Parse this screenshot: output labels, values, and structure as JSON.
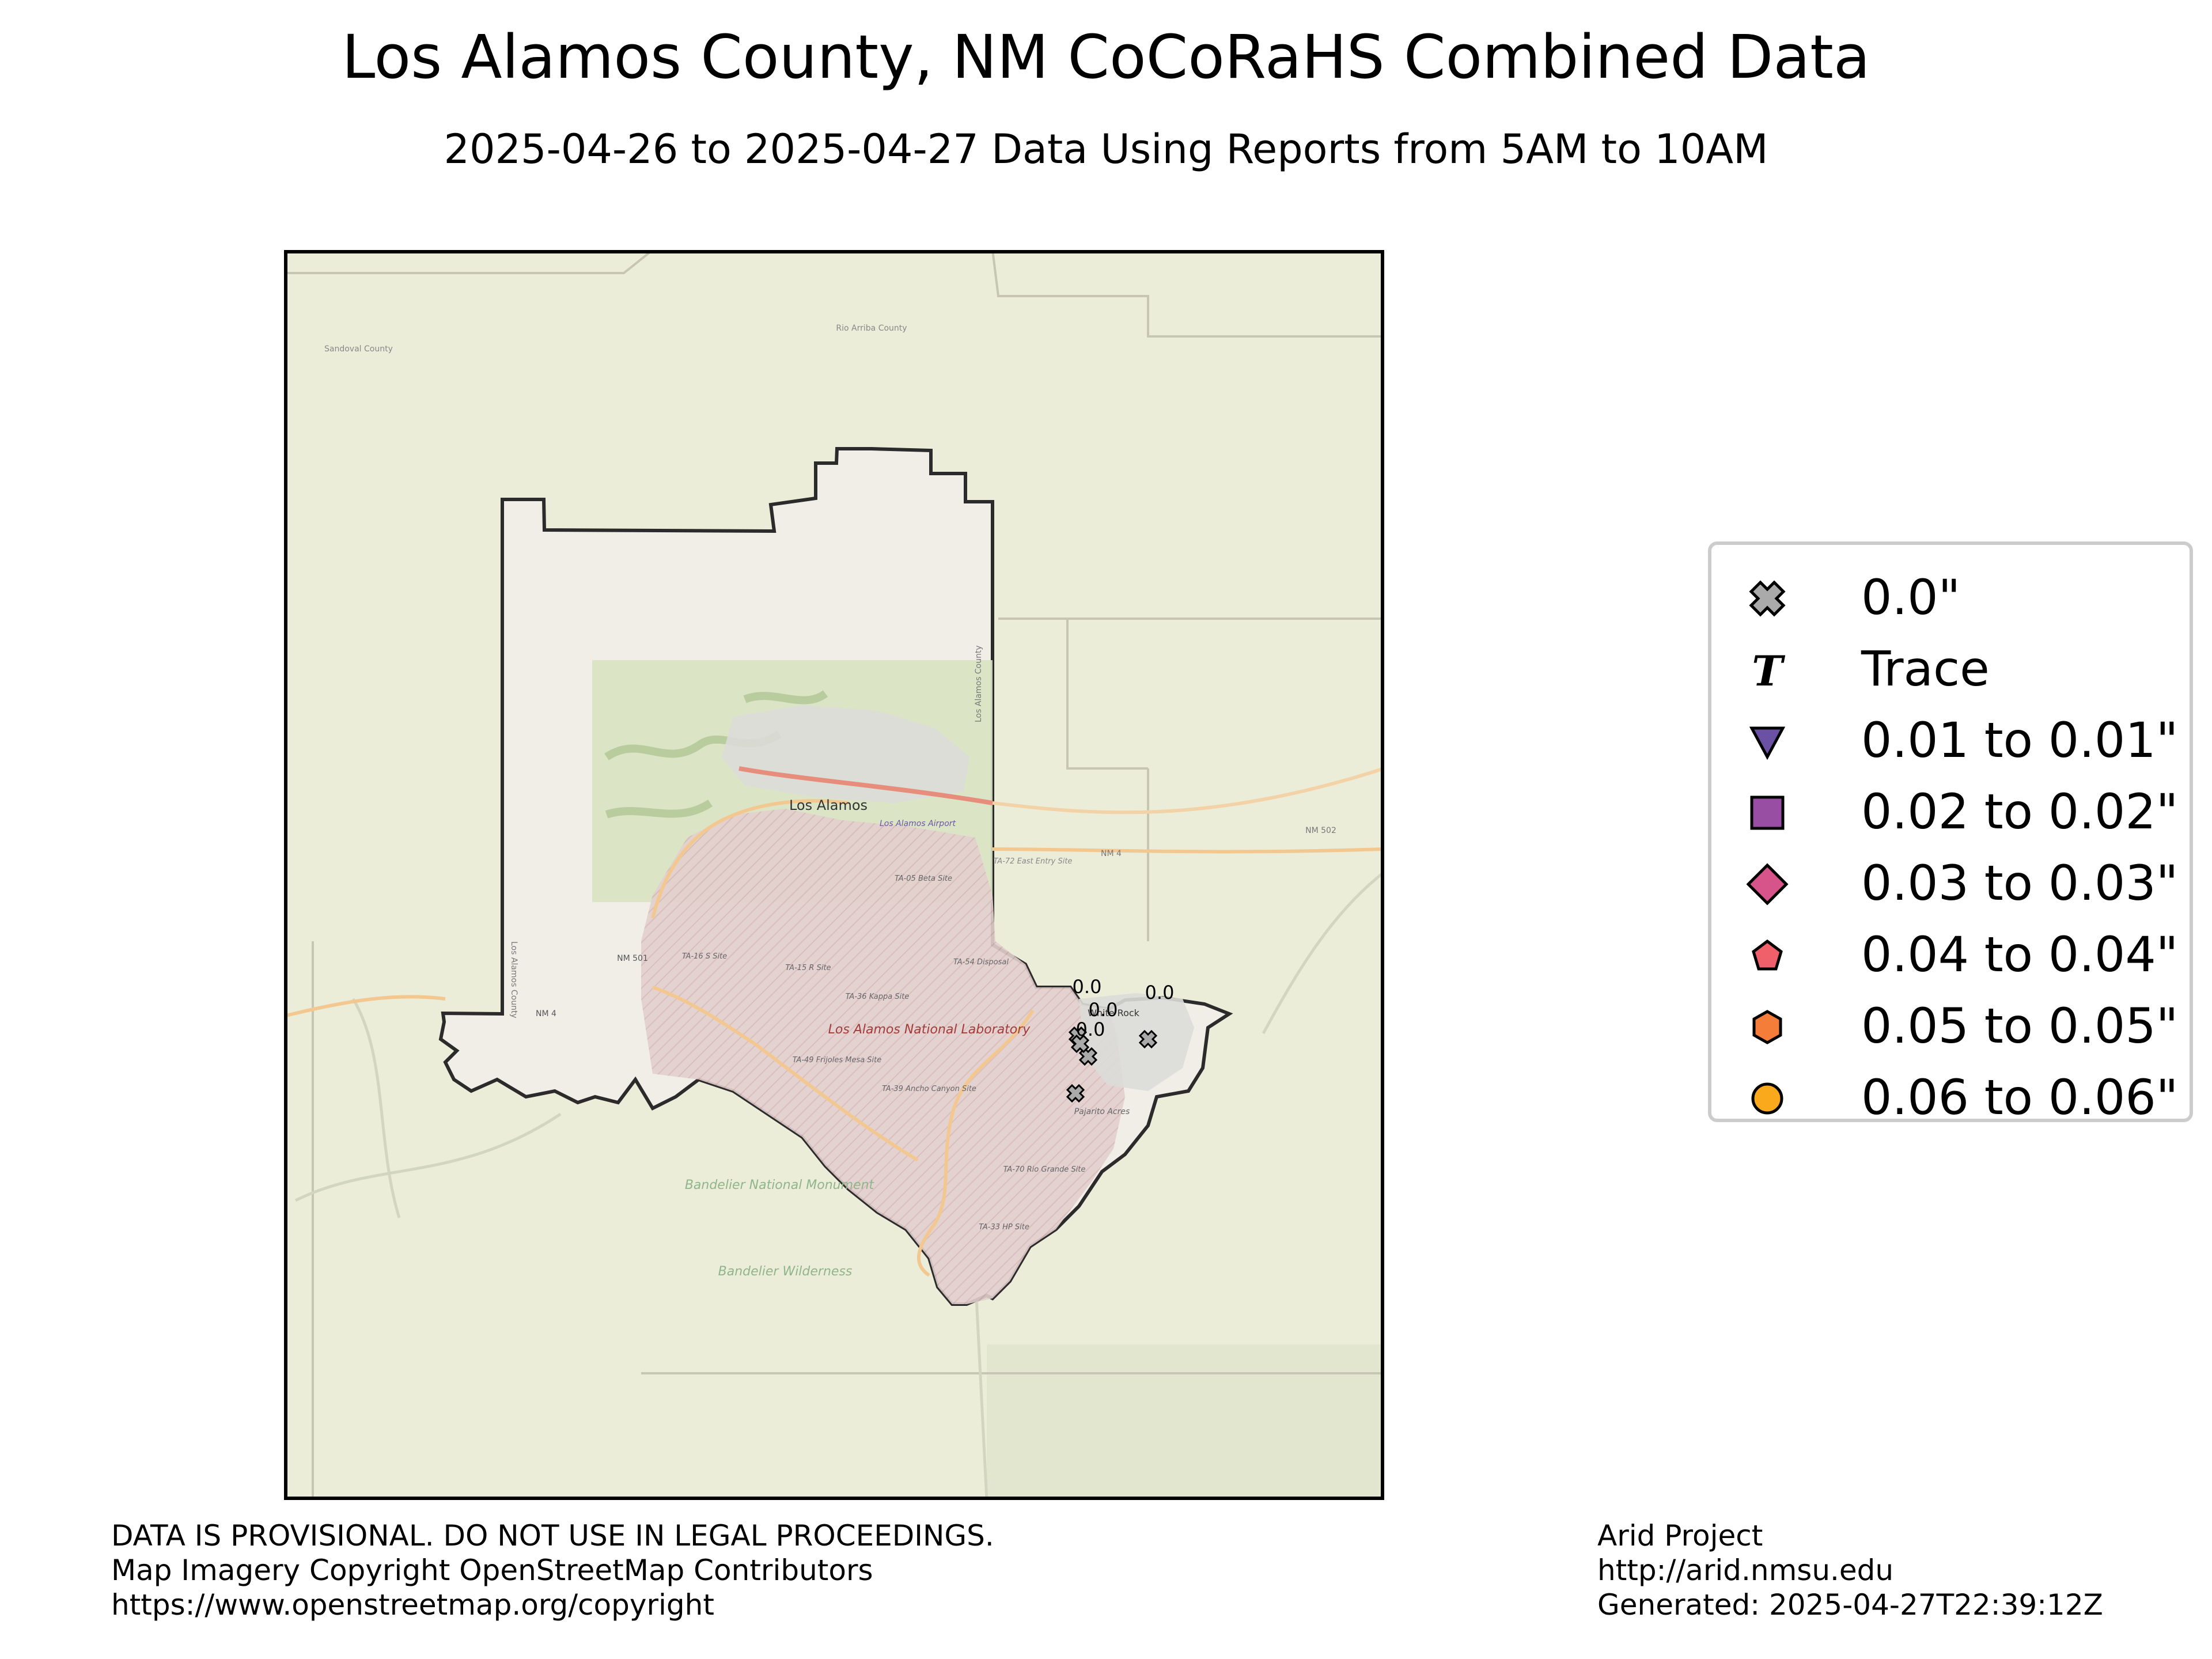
{
  "title": "Los Alamos County, NM CoCoRaHS Combined Data",
  "subtitle": "2025-04-26 to 2025-04-27 Data Using Reports from 5AM to 10AM",
  "map": {
    "place_labels": {
      "los_alamos": "Los Alamos",
      "airport": "Los Alamos Airport",
      "lab": "Los Alamos National Laboratory",
      "white_rock": "White Rock",
      "pajarito": "Pajarito Acres",
      "bandelier_monument": "Bandelier National Monument",
      "bandelier_wilderness": "Bandelier Wilderness",
      "county_left": "Los Alamos County",
      "county_right": "Los Alamos County",
      "rio_arriba": "Rio Arriba County",
      "sandoval": "Sandoval County",
      "nm4_a": "NM 4",
      "nm4_b": "NM 4",
      "nm501": "NM 501",
      "nm502": "NM 502",
      "ta05": "TA-05 Beta Site",
      "ta16": "TA-16 S Site",
      "ta15": "TA-15 R Site",
      "ta36": "TA-36 Kappa Site",
      "ta54": "TA-54 Disposal",
      "ta49": "TA-49 Frijoles Mesa Site",
      "ta39": "TA-39 Ancho Canyon Site",
      "ta70": "TA-70 Rio Grande Site",
      "ta33": "TA-33 HP Site",
      "ta72": "TA-72 East Entry Site"
    },
    "stations": [
      {
        "label": "0.0",
        "category": "0.0\""
      },
      {
        "label": "0.0",
        "category": "0.0\""
      },
      {
        "label": "0.0",
        "category": "0.0\""
      },
      {
        "label": "0.0",
        "category": "0.0\""
      },
      {
        "label": "",
        "category": "0.0\""
      }
    ]
  },
  "legend": [
    {
      "label": "0.0\"",
      "icon": "x-marker-icon",
      "color": "#aaaaaa"
    },
    {
      "label": "Trace",
      "icon": "trace-t-icon",
      "color": "#000000"
    },
    {
      "label": "0.01 to 0.01\"",
      "icon": "triangle-down-icon",
      "color": "#6a51a3"
    },
    {
      "label": "0.02 to 0.02\"",
      "icon": "square-icon",
      "color": "#984ea3"
    },
    {
      "label": "0.03 to 0.03\"",
      "icon": "diamond-icon",
      "color": "#d6548a"
    },
    {
      "label": "0.04 to 0.04\"",
      "icon": "pentagon-icon",
      "color": "#f0606a"
    },
    {
      "label": "0.05 to 0.05\"",
      "icon": "hexagon-icon",
      "color": "#f47d3a"
    },
    {
      "label": "0.06 to 0.06\"",
      "icon": "circle-icon",
      "color": "#f9a91b"
    }
  ],
  "footer_left": {
    "line1": "DATA IS PROVISIONAL. DO NOT USE IN LEGAL PROCEEDINGS.",
    "line2": "Map Imagery Copyright OpenStreetMap Contributors",
    "line3": "https://www.openstreetmap.org/copyright"
  },
  "footer_right": {
    "line1": "Arid Project",
    "line2": "http://arid.nmsu.edu",
    "line3": "Generated: 2025-04-27T22:39:12Z"
  }
}
